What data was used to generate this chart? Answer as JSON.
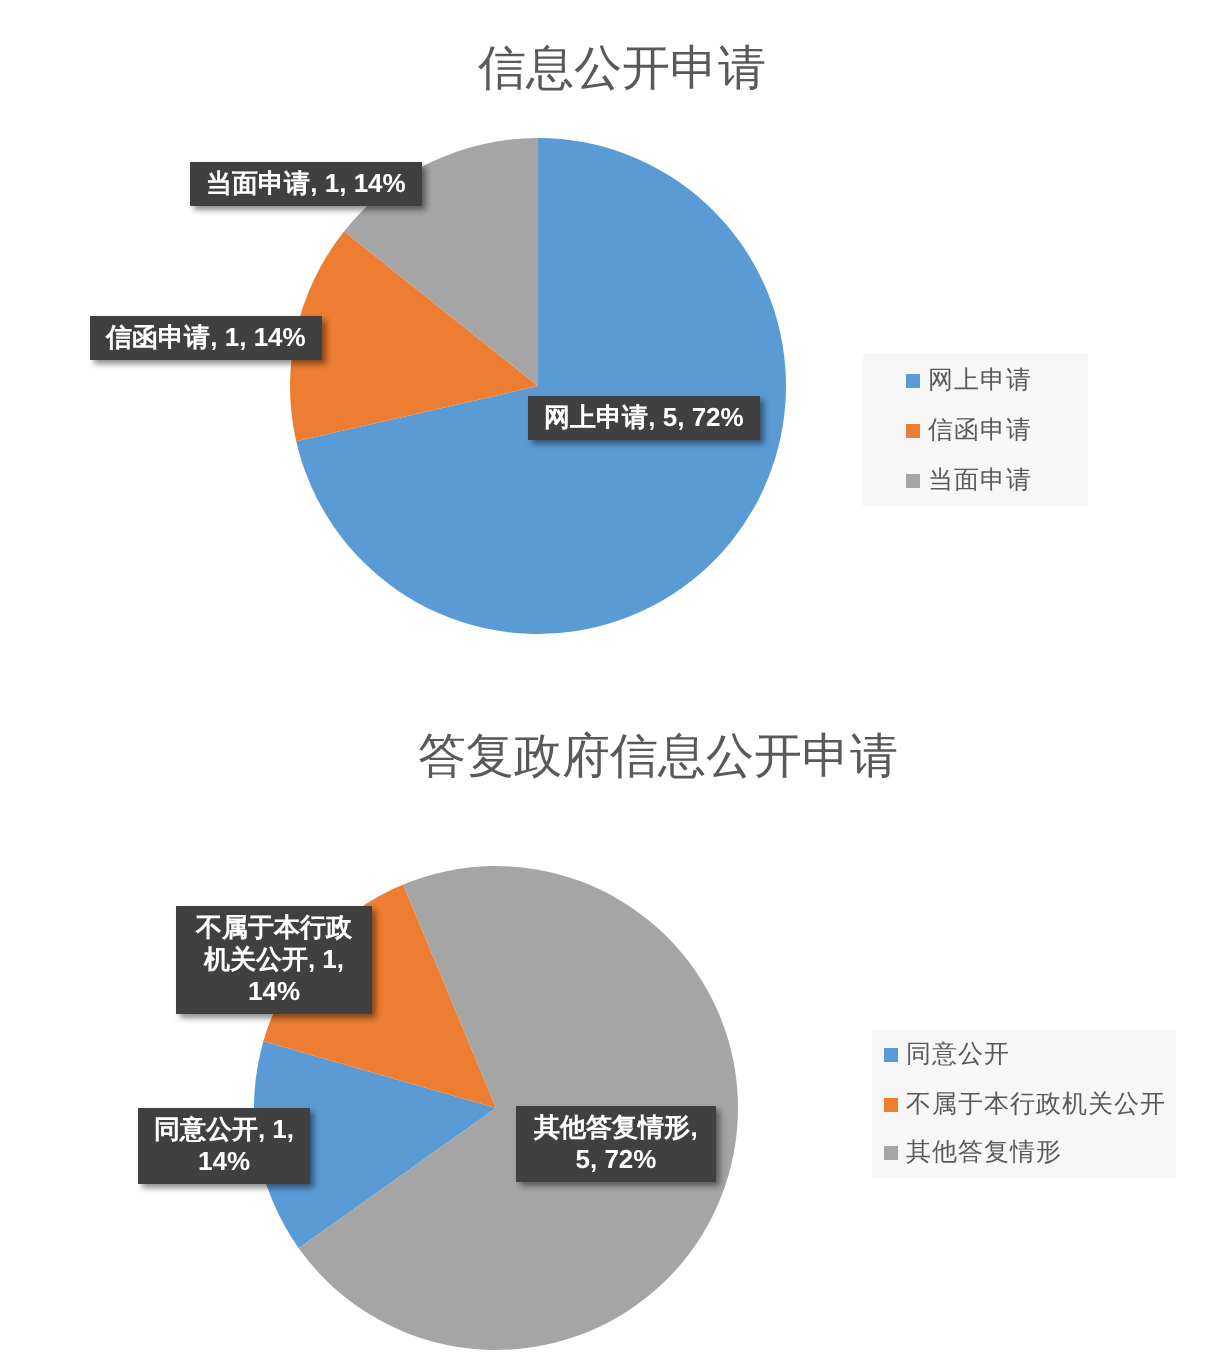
{
  "chart_data": [
    {
      "type": "pie",
      "title": "信息公开申请",
      "categories": [
        "网上申请",
        "信函申请",
        "当面申请"
      ],
      "values": [
        5,
        1,
        1
      ],
      "colors": [
        "#5b9bd5",
        "#ed7d31",
        "#a5a5a5"
      ],
      "value_labels": [
        "网上申请, 5, 72%",
        "信函申请, 1, 14%",
        "当面申请, 1, 14%"
      ],
      "legend": "right"
    },
    {
      "type": "pie",
      "title": "答复政府信息公开申请",
      "categories": [
        "同意公开",
        "不属于本行政机关公开",
        "其他答复情形"
      ],
      "values": [
        1,
        1,
        5
      ],
      "colors": [
        "#5b9bd5",
        "#ed7d31",
        "#a5a5a5"
      ],
      "value_labels": [
        "同意公开, 1, 14%",
        "不属于本行政机关公开, 1, 14%",
        "其他答复情形, 5, 72%"
      ],
      "legend": "right"
    }
  ]
}
